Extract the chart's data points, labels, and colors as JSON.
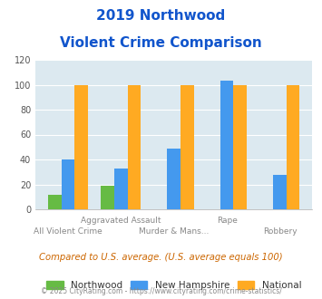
{
  "title_line1": "2019 Northwood",
  "title_line2": "Violent Crime Comparison",
  "categories": [
    "All Violent Crime",
    "Aggravated Assault",
    "Murder & Mans...",
    "Rape",
    "Robbery"
  ],
  "northwood": [
    12,
    19,
    0,
    0,
    0
  ],
  "new_hampshire": [
    40,
    33,
    49,
    103,
    28
  ],
  "national": [
    100,
    100,
    100,
    100,
    100
  ],
  "northwood_color": "#66bb44",
  "nh_color": "#4499ee",
  "national_color": "#ffaa22",
  "ylim": [
    0,
    120
  ],
  "yticks": [
    0,
    20,
    40,
    60,
    80,
    100,
    120
  ],
  "bg_color": "#dce9f0",
  "title_color": "#1155cc",
  "legend_labels": [
    "Northwood",
    "New Hampshire",
    "National"
  ],
  "note": "Compared to U.S. average. (U.S. average equals 100)",
  "footer": "© 2025 CityRating.com - https://www.cityrating.com/crime-statistics/",
  "bar_width": 0.25
}
